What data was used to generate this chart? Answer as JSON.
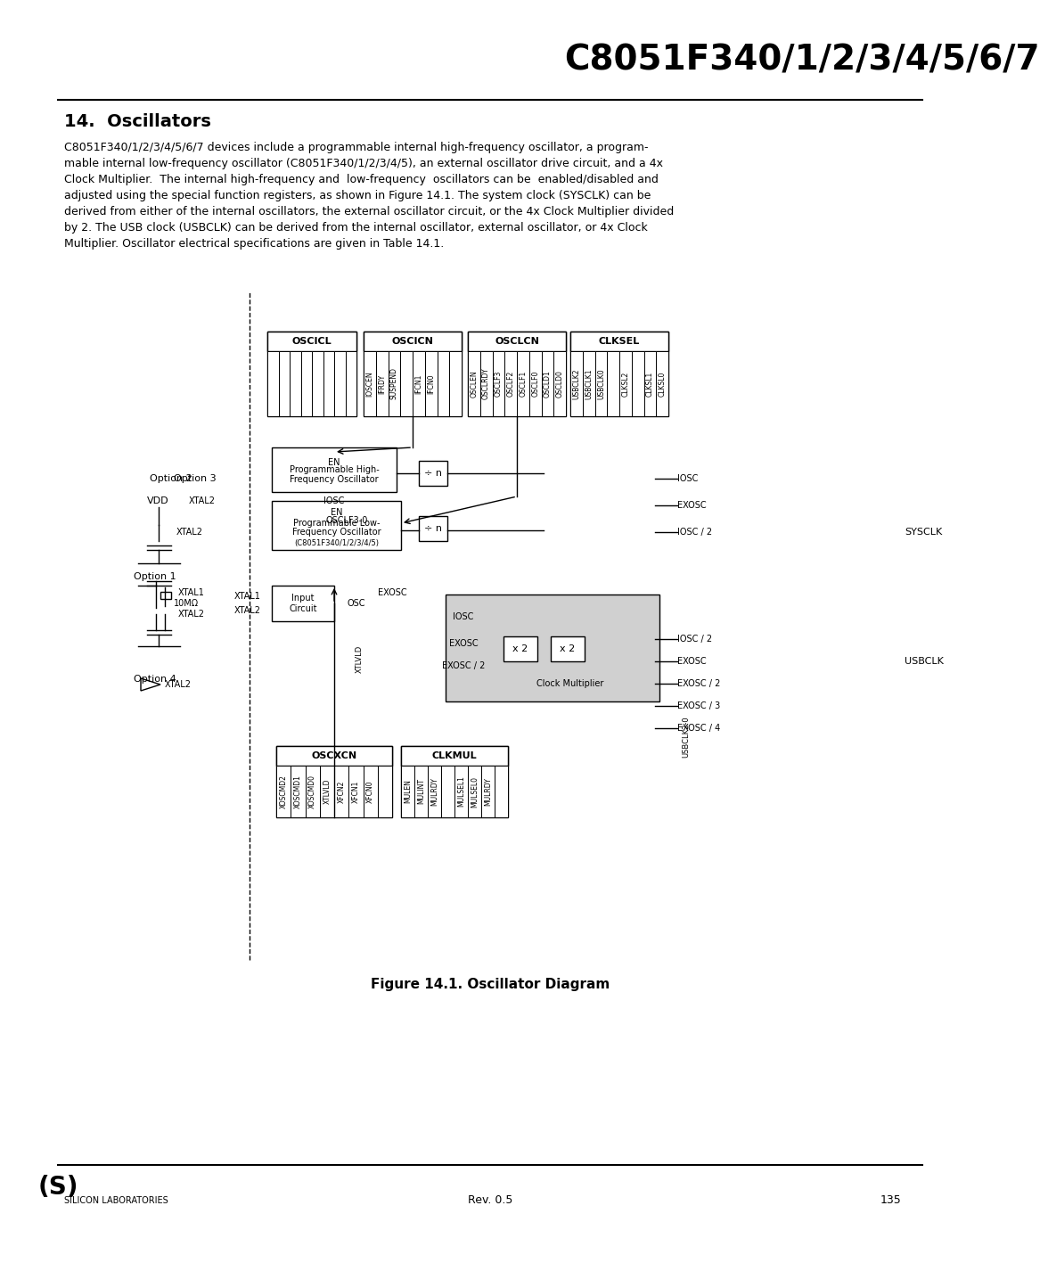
{
  "title": "C8051F340/1/2/3/4/5/6/7",
  "section_title": "14.  Oscillators",
  "body_text": "C8051F340/1/2/3/4/5/6/7 devices include a programmable internal high-frequency oscillator, a programmable internal low-frequency oscillator (C8051F340/1/2/3/4/5), an external oscillator drive circuit, and a 4x Clock Multiplier. The internal high-frequency and low-frequency oscillators can be enabled/disabled and adjusted using the special function registers, as shown in Figure 14.1. The system clock (SYSCLK) can be derived from either of the internal oscillators, the external oscillator circuit, or the 4x Clock Multiplier divided by 2. The USB clock (USBCLK) can be derived from the internal oscillator, external oscillator, or 4x Clock Multiplier. Oscillator electrical specifications are given in Table 14.1.",
  "figure_caption": "Figure 14.1. Oscillator Diagram",
  "footer_rev": "Rev. 0.5",
  "footer_page": "135",
  "bg_color": "#ffffff",
  "text_color": "#000000",
  "diagram_bg": "#ffffff",
  "box_fill": "#ffffff",
  "gray_fill": "#c0c0c0",
  "light_gray": "#d8d8d8"
}
